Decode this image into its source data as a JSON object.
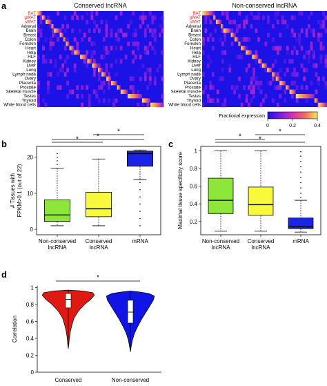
{
  "panels": {
    "a": "a",
    "b": "b",
    "c": "c",
    "d": "d"
  },
  "chart_data": [
    {
      "id": "a-left",
      "type": "heatmap",
      "title": "Conserved lncRNA",
      "rows": [
        "BAT",
        "gWAT",
        "sWAT",
        "Adrenal",
        "Brain",
        "Breast",
        "Colon",
        "Foreskin",
        "Heart",
        "Hela",
        "HLF",
        "Kidney",
        "Liver",
        "Lung",
        "Lymph node",
        "Ovary",
        "Placenta",
        "Prostate",
        "Skeletal muscle",
        "Testes",
        "Thyroid",
        "White blood cells"
      ],
      "highlight_rows": [
        "BAT",
        "gWAT",
        "sWAT"
      ],
      "highlight_color": "#e8231f",
      "column_share_by_row": [
        0.04,
        0.03,
        0.05,
        0.02,
        0.05,
        0.03,
        0.02,
        0.03,
        0.04,
        0.05,
        0.06,
        0.04,
        0.05,
        0.03,
        0.04,
        0.04,
        0.05,
        0.03,
        0.06,
        0.12,
        0.07,
        0.11
      ],
      "colorscale": "fractional expression, 0 to 0.4"
    },
    {
      "id": "a-right",
      "type": "heatmap",
      "title": "Non-conserved lncRNA",
      "rows": [
        "BAT",
        "gWAT",
        "sWAT",
        "Adrenal",
        "Brain",
        "Breast",
        "Colon",
        "Foreskin",
        "Heart",
        "Hela",
        "HLF",
        "Kidney",
        "Liver",
        "Lung",
        "Lymph node",
        "Ovary",
        "Placenta",
        "Prostate",
        "Skeletal muscle",
        "Testes",
        "Thyroid",
        "White blood cells"
      ],
      "highlight_rows": [
        "BAT",
        "gWAT",
        "sWAT"
      ],
      "highlight_color": "#e8231f",
      "column_share_by_row": [
        0.09,
        0.02,
        0.04,
        0.02,
        0.06,
        0.03,
        0.03,
        0.02,
        0.04,
        0.05,
        0.05,
        0.03,
        0.04,
        0.04,
        0.03,
        0.03,
        0.05,
        0.03,
        0.05,
        0.15,
        0.03,
        0.07
      ],
      "colorbar": {
        "label": "Fractional expression",
        "ticks": [
          0,
          0.2,
          0.4
        ],
        "range": [
          0,
          0.4
        ],
        "colors": [
          "#1d12e6",
          "#7a1ee0",
          "#d62fb5",
          "#f26a60",
          "#fbe65a"
        ]
      }
    },
    {
      "id": "b",
      "type": "box",
      "ylabel_lines": [
        "# Tissues with",
        "FPKM>0.1 (out of 22)"
      ],
      "yticks": [
        0,
        10,
        20
      ],
      "ylim": [
        -1.5,
        23
      ],
      "categories": [
        "Non-conserved\nlncRNA",
        "Conserved\nlncRNA",
        "mRNA"
      ],
      "series": [
        {
          "category": "Non-conserved\nlncRNA",
          "color": "#8ce73a",
          "q1": 2.2,
          "median": 4.0,
          "q3": 8.2,
          "whisker_low": 1,
          "whisker_high": 17,
          "outliers": [
            18,
            19,
            20,
            21
          ]
        },
        {
          "category": "Conserved\nlncRNA",
          "color": "#f9f93b",
          "q1": 3.5,
          "median": 5.7,
          "q3": 10.3,
          "whisker_low": 1,
          "whisker_high": 19.5,
          "outliers": []
        },
        {
          "category": "mRNA",
          "color": "#1a23e6",
          "q1": 17.5,
          "median": 21.0,
          "q3": 21.7,
          "whisker_low": 13.8,
          "whisker_high": 22,
          "outliers": [
            1,
            3,
            5,
            7,
            9,
            11,
            13
          ]
        }
      ],
      "significance": [
        {
          "from": 0,
          "to": 2,
          "label": "*"
        },
        {
          "from": 1,
          "to": 2,
          "label": "*"
        },
        {
          "from": 0,
          "to": 1,
          "label": "*"
        }
      ]
    },
    {
      "id": "c",
      "type": "box",
      "ylabel_lines": [
        "Maximal tissue specificity score"
      ],
      "yticks": [
        0.2,
        0.4,
        0.6,
        0.8,
        1.0
      ],
      "ytick_labels": [
        "0.2",
        "0.4",
        "0.6",
        "0.8",
        "1"
      ],
      "ylim": [
        0.05,
        1.05
      ],
      "categories": [
        "Non-conserved\nlncRNA",
        "Conserved\nlncRNA",
        "mRNA"
      ],
      "series": [
        {
          "category": "Non-conserved\nlncRNA",
          "color": "#8ce73a",
          "q1": 0.29,
          "median": 0.44,
          "q3": 0.69,
          "whisker_low": 0.09,
          "whisker_high": 1.0,
          "outliers": []
        },
        {
          "category": "Conserved\nlncRNA",
          "color": "#f9f93b",
          "q1": 0.27,
          "median": 0.39,
          "q3": 0.59,
          "whisker_low": 0.09,
          "whisker_high": 1.0,
          "outliers": []
        },
        {
          "category": "mRNA",
          "color": "#1a23e6",
          "q1": 0.12,
          "median": 0.14,
          "q3": 0.24,
          "whisker_low": 0.08,
          "whisker_high": 0.44,
          "outliers": [
            0.47,
            0.52,
            0.58,
            0.64,
            0.7,
            0.76,
            0.82,
            0.88,
            0.94,
            0.99
          ]
        }
      ],
      "significance": [
        {
          "from": 0,
          "to": 1,
          "label": "*"
        },
        {
          "from": 1,
          "to": 2,
          "label": "*"
        },
        {
          "from": 0,
          "to": 2,
          "label": "*"
        }
      ]
    },
    {
      "id": "d",
      "type": "violin",
      "ylabel": "Correlation",
      "yticks": [
        0,
        0.2,
        0.4,
        0.6,
        0.8,
        1.0
      ],
      "ytick_labels": [
        "0",
        "0.2",
        "0.4",
        "0.6",
        "0.8",
        "1"
      ],
      "ylim": [
        0,
        1.02
      ],
      "categories": [
        "Conserved",
        "Non-conserved"
      ],
      "series": [
        {
          "category": "Conserved",
          "color": "#e01a12",
          "q1": 0.76,
          "median": 0.86,
          "q3": 0.93,
          "min": 0.28,
          "max": 0.97,
          "density": [
            [
              0.28,
              0.0
            ],
            [
              0.33,
              0.02
            ],
            [
              0.4,
              0.04
            ],
            [
              0.48,
              0.08
            ],
            [
              0.56,
              0.14
            ],
            [
              0.64,
              0.22
            ],
            [
              0.72,
              0.38
            ],
            [
              0.8,
              0.62
            ],
            [
              0.86,
              0.86
            ],
            [
              0.91,
              1.0
            ],
            [
              0.94,
              0.94
            ],
            [
              0.96,
              0.55
            ],
            [
              0.97,
              0.0
            ]
          ]
        },
        {
          "category": "Non-conserved",
          "color": "#1015e6",
          "q1": 0.58,
          "median": 0.71,
          "q3": 0.85,
          "min": 0.24,
          "max": 0.96,
          "density": [
            [
              0.24,
              0.0
            ],
            [
              0.3,
              0.03
            ],
            [
              0.38,
              0.08
            ],
            [
              0.46,
              0.16
            ],
            [
              0.54,
              0.28
            ],
            [
              0.62,
              0.42
            ],
            [
              0.7,
              0.58
            ],
            [
              0.78,
              0.74
            ],
            [
              0.85,
              0.88
            ],
            [
              0.9,
              0.92
            ],
            [
              0.93,
              0.7
            ],
            [
              0.95,
              0.3
            ],
            [
              0.96,
              0.0
            ]
          ]
        }
      ],
      "significance": [
        {
          "from": 0,
          "to": 1,
          "label": "*"
        }
      ]
    }
  ]
}
